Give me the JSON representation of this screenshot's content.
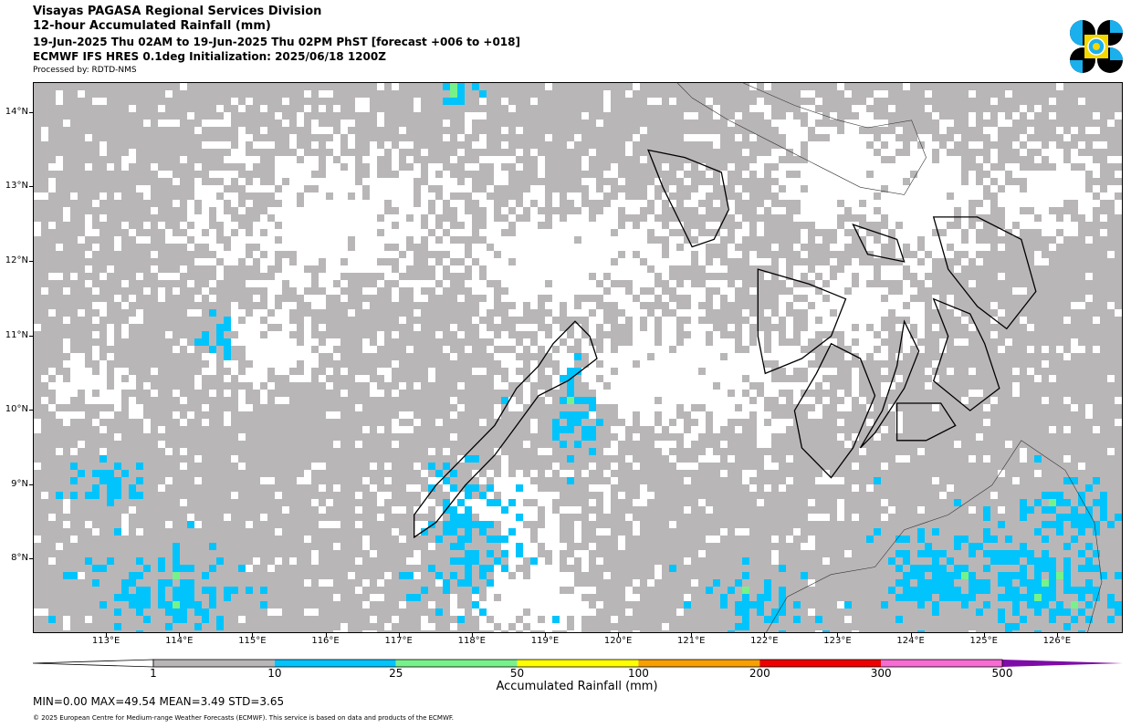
{
  "header": {
    "org": "Visayas PAGASA Regional Services Division",
    "title": "12-hour Accumulated Rainfall (mm)",
    "period": "19-Jun-2025 Thu 02AM to 19-Jun-2025 Thu 02PM PhST [forecast +006 to +018]",
    "model": "ECMWF IFS HRES 0.1deg Initialization: 2025/06/18 1200Z",
    "processed": "Processed by: RDTD-NMS"
  },
  "logo": {
    "name": "PAGASA seal",
    "colors": [
      "#000000",
      "#1ab0ee",
      "#f5d800"
    ]
  },
  "map": {
    "lon_range": [
      112.0,
      126.9
    ],
    "lat_range": [
      7.0,
      14.4
    ],
    "lat_ticks": [
      {
        "value": 14,
        "label": "14°N"
      },
      {
        "value": 13,
        "label": "13°N"
      },
      {
        "value": 12,
        "label": "12°N"
      },
      {
        "value": 11,
        "label": "11°N"
      },
      {
        "value": 10,
        "label": "10°N"
      },
      {
        "value": 9,
        "label": "9°N"
      },
      {
        "value": 8,
        "label": "8°N"
      }
    ],
    "lon_ticks": [
      {
        "value": 113,
        "label": "113°E"
      },
      {
        "value": 114,
        "label": "114°E"
      },
      {
        "value": 115,
        "label": "115°E"
      },
      {
        "value": 116,
        "label": "116°E"
      },
      {
        "value": 117,
        "label": "117°E"
      },
      {
        "value": 118,
        "label": "118°E"
      },
      {
        "value": 119,
        "label": "119°E"
      },
      {
        "value": 120,
        "label": "120°E"
      },
      {
        "value": 121,
        "label": "121°E"
      },
      {
        "value": 122,
        "label": "122°E"
      },
      {
        "value": 123,
        "label": "123°E"
      },
      {
        "value": 124,
        "label": "124°E"
      },
      {
        "value": 125,
        "label": "125°E"
      },
      {
        "value": 126,
        "label": "126°E"
      }
    ],
    "regions": [
      "Palawan",
      "Mindoro",
      "Panay",
      "Negros",
      "Cebu",
      "Bohol",
      "Samar",
      "Leyte",
      "Mindanao",
      "Luzon",
      "Masbate"
    ]
  },
  "colorbar": {
    "title": "Accumulated Rainfall (mm)",
    "low_color": "#ffffff",
    "high_color": "#6a0a9a",
    "bins": [
      {
        "from": 1,
        "to": 10,
        "color": "#b9b6b8"
      },
      {
        "from": 10,
        "to": 25,
        "color": "#00c4fb"
      },
      {
        "from": 25,
        "to": 50,
        "color": "#77f28a"
      },
      {
        "from": 50,
        "to": 100,
        "color": "#ffff00"
      },
      {
        "from": 100,
        "to": 200,
        "color": "#f7a000"
      },
      {
        "from": 200,
        "to": 300,
        "color": "#f00000"
      },
      {
        "from": 300,
        "to": 500,
        "color": "#f76bd3"
      },
      {
        "from": 500,
        "to": null,
        "color": "#7e0ca6"
      }
    ],
    "tick_labels": [
      "1",
      "10",
      "25",
      "50",
      "100",
      "200",
      "300",
      "500"
    ]
  },
  "stats": {
    "text": "MIN=0.00   MAX=49.54   MEAN=3.49   STD=3.65"
  },
  "copyright": "© 2025 European Centre for Medium-range Weather Forecasts (ECMWF). This service is based on data and products of the ECMWF."
}
